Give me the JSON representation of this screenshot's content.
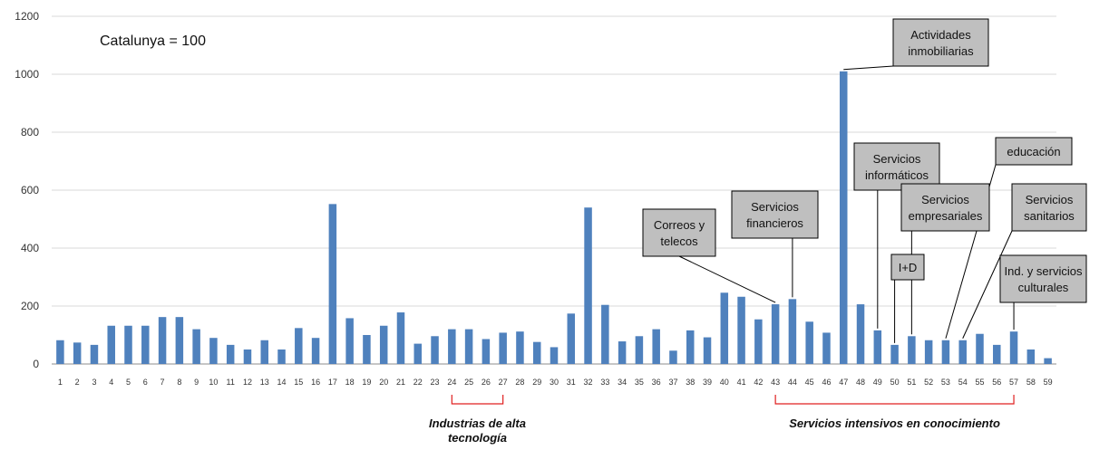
{
  "chart_data": {
    "type": "bar",
    "note": "Catalunya = 100",
    "ylim": [
      0,
      1200
    ],
    "yticks": [
      0,
      200,
      400,
      600,
      800,
      1000,
      1200
    ],
    "grid": true,
    "bar_color": "#4F81BD",
    "categories": [
      "1",
      "2",
      "3",
      "4",
      "5",
      "6",
      "7",
      "8",
      "9",
      "10",
      "11",
      "12",
      "13",
      "14",
      "15",
      "16",
      "17",
      "18",
      "19",
      "20",
      "21",
      "22",
      "23",
      "24",
      "25",
      "26",
      "27",
      "28",
      "29",
      "30",
      "31",
      "32",
      "33",
      "34",
      "35",
      "36",
      "37",
      "38",
      "39",
      "40",
      "41",
      "42",
      "43",
      "44",
      "45",
      "46",
      "47",
      "48",
      "49",
      "50",
      "51",
      "52",
      "53",
      "54",
      "55",
      "56",
      "57",
      "58",
      "59"
    ],
    "values": [
      82,
      74,
      66,
      132,
      132,
      132,
      162,
      162,
      120,
      90,
      66,
      50,
      82,
      50,
      124,
      90,
      552,
      158,
      100,
      132,
      178,
      70,
      96,
      120,
      120,
      86,
      108,
      112,
      76,
      58,
      174,
      540,
      204,
      78,
      96,
      120,
      46,
      116,
      92,
      246,
      232,
      154,
      206,
      224,
      146,
      108,
      1010,
      206,
      116,
      66,
      96,
      82,
      82,
      82,
      104,
      66,
      112,
      50,
      20
    ],
    "callouts": [
      {
        "lines": [
          "Actividades",
          "inmobiliarias"
        ],
        "category": "47"
      },
      {
        "lines": [
          "Servicios",
          "informáticos"
        ],
        "category": "49"
      },
      {
        "lines": [
          "educación"
        ],
        "category": "53"
      },
      {
        "lines": [
          "Servicios",
          "financieros"
        ],
        "category": "44"
      },
      {
        "lines": [
          "Servicios",
          "empresariales"
        ],
        "category": "51"
      },
      {
        "lines": [
          "Servicios",
          "sanitarios"
        ],
        "category": "54"
      },
      {
        "lines": [
          "Correos y",
          "telecos"
        ],
        "category": "43"
      },
      {
        "lines": [
          "I+D"
        ],
        "category": "50"
      },
      {
        "lines": [
          "Ind. y servicios",
          "culturales"
        ],
        "category": "57"
      }
    ],
    "groups": [
      {
        "label": [
          "Industrias de alta",
          "tecnología"
        ],
        "from": "24",
        "to": "27"
      },
      {
        "label": [
          "Servicios intensivos en conocimiento"
        ],
        "from": "43",
        "to": "57"
      }
    ]
  }
}
